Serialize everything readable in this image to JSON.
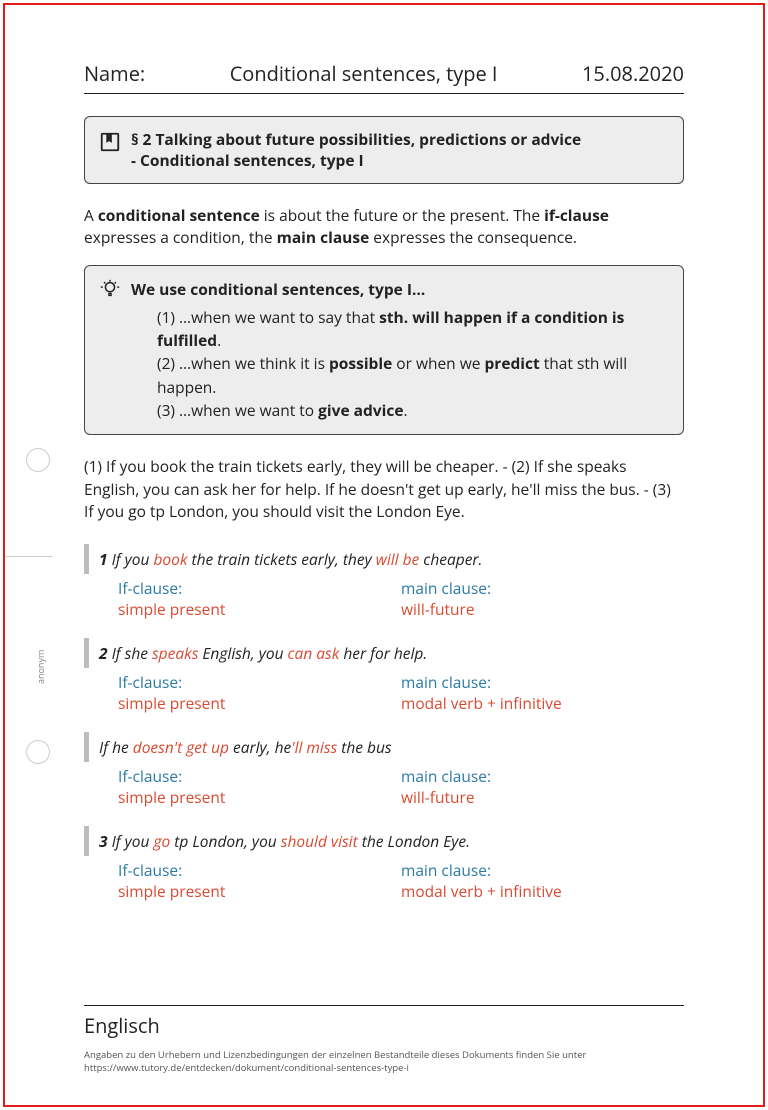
{
  "colors": {
    "frame": "#e41b1b",
    "text": "#222222",
    "box_bg": "#ededed",
    "box_border": "#444444",
    "accent_bar": "#bdbdbd",
    "label": "#2b7aa3",
    "value": "#d94a32",
    "punch": "#cccccc",
    "license_text": "#555555"
  },
  "typography": {
    "base_family": "Segoe UI / Open Sans / Arial",
    "header_fontsize": 20,
    "body_fontsize": 15.5,
    "license_fontsize": 9.5,
    "side_fontsize": 9
  },
  "header": {
    "name_label": "Name:",
    "title": "Conditional sentences, type I",
    "date": "15.08.2020"
  },
  "section": {
    "icon": "book-bookmark-icon",
    "title_line1": "§ 2 Talking about future possibilities, predictions or advice",
    "title_line2": "- Conditional sentences, type I"
  },
  "intro": {
    "pre1": "A ",
    "b1": "conditional sentence",
    "mid1": " is about the future or the present. The ",
    "b2": "if-clause",
    "mid2": " expresses a condition, the ",
    "b3": "main clause",
    "post": " expresses the consequence."
  },
  "tipbox": {
    "icon": "lightbulb-icon",
    "title": "We use conditional sentences, type I…",
    "items": [
      {
        "n": "(1)",
        "pre": " …when we want to say that ",
        "b": "sth. will happen if a condition is fulfilled",
        "post": "."
      },
      {
        "n": "(2)",
        "pre": " …when we think it is ",
        "b": "possible",
        "mid": " or when we ",
        "b2": "predict",
        "post": " that sth will happen."
      },
      {
        "n": "(3)",
        "pre": " …when we want to ",
        "b": "give advice",
        "post": "."
      }
    ]
  },
  "examples_intro": "(1) If you book the train tickets early, they will be cheaper. - (2) If she speaks English, you can ask her for help. If he doesn't get up early, he'll miss the bus. - (3) If you go tp London, you should visit the London Eye.",
  "clause_labels": {
    "if": "If-clause:",
    "main": "main clause:"
  },
  "clause_values": {
    "simple_present": "simple present",
    "will_future": "will-future",
    "modal_inf": "modal verb + infinitive"
  },
  "examples": [
    {
      "num": "1",
      "parts": [
        {
          "t": " If you ",
          "hl": false
        },
        {
          "t": "book",
          "hl": true
        },
        {
          "t": " the train tickets early, they ",
          "hl": false
        },
        {
          "t": "will be",
          "hl": true
        },
        {
          "t": " cheaper.",
          "hl": false
        }
      ],
      "if_val": "simple_present",
      "main_val": "will_future"
    },
    {
      "num": "2",
      "parts": [
        {
          "t": " If she ",
          "hl": false
        },
        {
          "t": "speaks",
          "hl": true
        },
        {
          "t": " English, you ",
          "hl": false
        },
        {
          "t": "can ask",
          "hl": true
        },
        {
          "t": " her for help.",
          "hl": false
        }
      ],
      "if_val": "simple_present",
      "main_val": "modal_inf"
    },
    {
      "num": "",
      "parts": [
        {
          "t": "If he ",
          "hl": false
        },
        {
          "t": "doesn't get up",
          "hl": true
        },
        {
          "t": " early, he",
          "hl": false
        },
        {
          "t": "'ll miss",
          "hl": true
        },
        {
          "t": " the bus",
          "hl": false
        }
      ],
      "if_val": "simple_present",
      "main_val": "will_future"
    },
    {
      "num": "3",
      "parts": [
        {
          "t": " If you ",
          "hl": false
        },
        {
          "t": "go",
          "hl": true
        },
        {
          "t": " tp London, you ",
          "hl": false
        },
        {
          "t": "should visit",
          "hl": true
        },
        {
          "t": " the London Eye.",
          "hl": false
        }
      ],
      "if_val": "simple_present",
      "main_val": "modal_inf"
    }
  ],
  "footer": {
    "subject": "Englisch",
    "license_line1": "Angaben zu den Urhebern und Lizenzbedingungen der einzelnen Bestandteile dieses Dokuments finden Sie unter",
    "license_line2": "https://www.tutory.de/entdecken/dokument/conditional-sentences-type-i"
  },
  "side_text": "anonym"
}
